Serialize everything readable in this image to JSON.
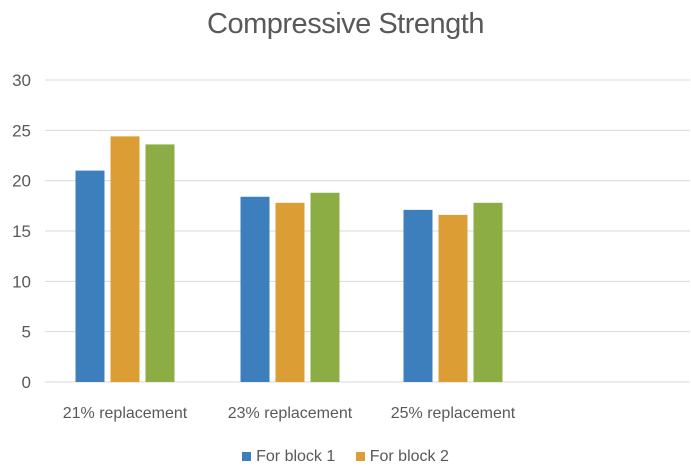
{
  "colors": {
    "series1": "#3d7fbc",
    "series2": "#dc9d34",
    "series3": "#8bad43",
    "grid": "#d9d9d9",
    "text": "#595959"
  },
  "chart_data": {
    "type": "bar",
    "title": "Compressive Strength",
    "categories": [
      "21% replacement",
      "23% replacement",
      "25% replacement"
    ],
    "series": [
      {
        "name": "For block 1",
        "values": [
          21.0,
          18.4,
          17.1
        ]
      },
      {
        "name": "For block 2",
        "values": [
          24.4,
          17.8,
          16.6
        ]
      },
      {
        "name": "",
        "values": [
          23.6,
          18.8,
          17.8
        ]
      }
    ],
    "ylim": [
      0,
      30
    ],
    "yticks": [
      0,
      5,
      10,
      15,
      20,
      25,
      30
    ],
    "grid": true,
    "legend_position": "bottom"
  }
}
